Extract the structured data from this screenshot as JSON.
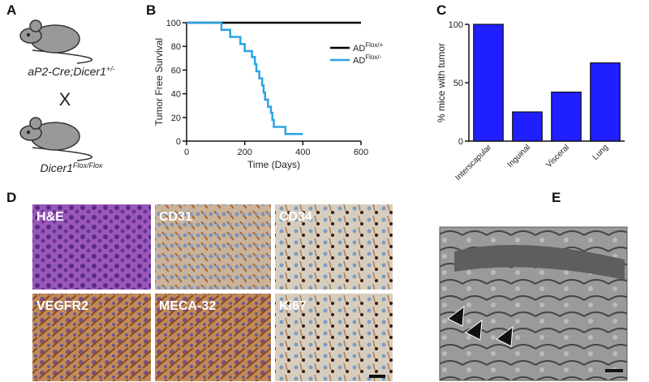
{
  "panels": {
    "A": {
      "label": "A",
      "cross_1": {
        "text": "aP2-Cre;Dicer1",
        "sup": "+/-"
      },
      "cross": "X",
      "cross_2": {
        "text": "Dicer1",
        "sup": "Flox/Flox"
      }
    },
    "D": {
      "label": "D",
      "images": [
        "H&E",
        "CD31",
        "CD34",
        "VEGFR2",
        "MECA-32",
        "Ki67"
      ]
    },
    "E": {
      "label": "E"
    }
  },
  "chart_data": [
    {
      "panel": "B",
      "type": "line",
      "xlabel": "Time (Days)",
      "ylabel": "Tumor Free Survival",
      "xlim": [
        0,
        600
      ],
      "xticks": [
        0,
        200,
        400,
        600
      ],
      "ylim": [
        0,
        100
      ],
      "yticks": [
        0,
        20,
        40,
        60,
        80,
        100
      ],
      "series": [
        {
          "name": "AD",
          "name_sup": "Flox/+",
          "color": "#000000",
          "x": [
            0,
            600
          ],
          "values": [
            100,
            100
          ]
        },
        {
          "name": "AD",
          "name_sup": "Flox/-",
          "color": "#29a3e6",
          "x": [
            0,
            120,
            120,
            150,
            150,
            185,
            185,
            200,
            200,
            225,
            225,
            235,
            235,
            240,
            240,
            250,
            250,
            260,
            260,
            265,
            265,
            270,
            270,
            280,
            280,
            290,
            290,
            295,
            295,
            300,
            300,
            340,
            340,
            400
          ],
          "values": [
            100,
            100,
            94,
            94,
            88,
            88,
            82,
            82,
            76,
            76,
            71,
            71,
            65,
            65,
            59,
            59,
            53,
            53,
            47,
            47,
            41,
            41,
            35,
            35,
            29,
            29,
            24,
            24,
            18,
            18,
            12,
            12,
            6,
            6
          ]
        }
      ]
    },
    {
      "panel": "C",
      "type": "bar",
      "ylabel": "% mice with tumor",
      "categories": [
        "Interscapular",
        "Inguinal",
        "Visceral",
        "Lung"
      ],
      "values": [
        100,
        25,
        42,
        67
      ],
      "color": "#1f1fff",
      "ylim": [
        0,
        100
      ],
      "yticks": [
        0,
        50,
        100
      ]
    }
  ]
}
